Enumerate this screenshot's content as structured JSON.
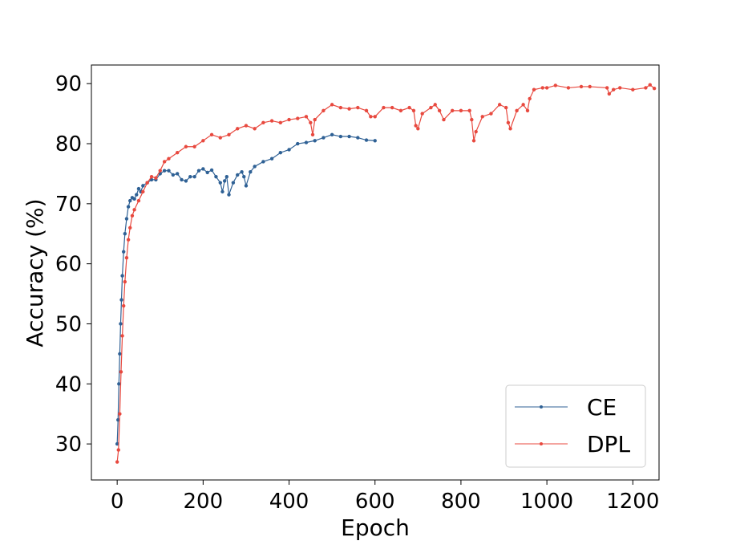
{
  "chart_data": {
    "type": "line",
    "title": "",
    "xlabel": "Epoch",
    "ylabel": "Accuracy (%)",
    "xlim": [
      -60,
      1261
    ],
    "ylim": [
      24,
      93.1
    ],
    "xticks": [
      0,
      200,
      400,
      600,
      800,
      1000,
      1200
    ],
    "yticks": [
      30,
      40,
      50,
      60,
      70,
      80,
      90
    ],
    "grid": false,
    "legend_position": "lower-right",
    "series": [
      {
        "name": "CE",
        "color": "#2f6195",
        "points": [
          [
            0,
            30
          ],
          [
            2,
            34
          ],
          [
            4,
            40
          ],
          [
            6,
            45
          ],
          [
            8,
            50
          ],
          [
            10,
            54
          ],
          [
            12,
            58
          ],
          [
            15,
            62
          ],
          [
            18,
            65
          ],
          [
            22,
            67.5
          ],
          [
            26,
            69.5
          ],
          [
            30,
            70.5
          ],
          [
            35,
            71
          ],
          [
            40,
            70.8
          ],
          [
            45,
            71.5
          ],
          [
            50,
            72.5
          ],
          [
            55,
            72
          ],
          [
            60,
            73
          ],
          [
            70,
            73.5
          ],
          [
            80,
            74
          ],
          [
            90,
            74
          ],
          [
            100,
            75
          ],
          [
            110,
            75.5
          ],
          [
            120,
            75.5
          ],
          [
            130,
            74.8
          ],
          [
            140,
            75
          ],
          [
            150,
            74
          ],
          [
            160,
            73.8
          ],
          [
            170,
            74.5
          ],
          [
            180,
            74.5
          ],
          [
            190,
            75.5
          ],
          [
            200,
            75.8
          ],
          [
            210,
            75.2
          ],
          [
            220,
            75.6
          ],
          [
            230,
            74.5
          ],
          [
            240,
            73.5
          ],
          [
            245,
            72
          ],
          [
            250,
            73.8
          ],
          [
            255,
            74.5
          ],
          [
            260,
            71.5
          ],
          [
            270,
            73.5
          ],
          [
            280,
            74.8
          ],
          [
            290,
            75.3
          ],
          [
            295,
            74.5
          ],
          [
            300,
            73
          ],
          [
            310,
            75.3
          ],
          [
            320,
            76.2
          ],
          [
            340,
            77
          ],
          [
            360,
            77.5
          ],
          [
            380,
            78.5
          ],
          [
            400,
            79
          ],
          [
            420,
            80
          ],
          [
            440,
            80.2
          ],
          [
            460,
            80.5
          ],
          [
            480,
            81
          ],
          [
            500,
            81.5
          ],
          [
            520,
            81.2
          ],
          [
            540,
            81.2
          ],
          [
            560,
            81
          ],
          [
            580,
            80.6
          ],
          [
            600,
            80.5
          ]
        ]
      },
      {
        "name": "DPL",
        "color": "#e8493f",
        "points": [
          [
            0,
            27
          ],
          [
            3,
            29
          ],
          [
            6,
            35
          ],
          [
            9,
            42
          ],
          [
            12,
            48
          ],
          [
            15,
            53
          ],
          [
            18,
            57
          ],
          [
            22,
            61
          ],
          [
            26,
            64
          ],
          [
            30,
            66
          ],
          [
            35,
            68
          ],
          [
            40,
            69
          ],
          [
            50,
            70.5
          ],
          [
            60,
            72
          ],
          [
            70,
            73.5
          ],
          [
            80,
            74.5
          ],
          [
            90,
            74.3
          ],
          [
            100,
            75.5
          ],
          [
            110,
            77
          ],
          [
            120,
            77.5
          ],
          [
            140,
            78.5
          ],
          [
            160,
            79.5
          ],
          [
            180,
            79.5
          ],
          [
            200,
            80.5
          ],
          [
            220,
            81.5
          ],
          [
            240,
            81
          ],
          [
            260,
            81.5
          ],
          [
            280,
            82.5
          ],
          [
            300,
            83
          ],
          [
            320,
            82.5
          ],
          [
            340,
            83.5
          ],
          [
            360,
            83.8
          ],
          [
            380,
            83.5
          ],
          [
            400,
            84
          ],
          [
            420,
            84.2
          ],
          [
            440,
            84.5
          ],
          [
            450,
            83.5
          ],
          [
            455,
            81.5
          ],
          [
            460,
            84
          ],
          [
            480,
            85.5
          ],
          [
            500,
            86.5
          ],
          [
            520,
            86
          ],
          [
            540,
            85.8
          ],
          [
            560,
            86
          ],
          [
            580,
            85.5
          ],
          [
            590,
            84.5
          ],
          [
            600,
            84.5
          ],
          [
            620,
            86
          ],
          [
            640,
            86
          ],
          [
            660,
            85.5
          ],
          [
            680,
            86
          ],
          [
            690,
            85.5
          ],
          [
            695,
            83
          ],
          [
            700,
            82.5
          ],
          [
            710,
            85
          ],
          [
            730,
            86
          ],
          [
            740,
            86.5
          ],
          [
            750,
            85.5
          ],
          [
            760,
            84
          ],
          [
            780,
            85.5
          ],
          [
            800,
            85.5
          ],
          [
            820,
            85.5
          ],
          [
            825,
            84
          ],
          [
            830,
            80.5
          ],
          [
            835,
            82
          ],
          [
            850,
            84.5
          ],
          [
            870,
            85
          ],
          [
            890,
            86.5
          ],
          [
            905,
            86
          ],
          [
            910,
            83.5
          ],
          [
            915,
            82.5
          ],
          [
            930,
            85.5
          ],
          [
            945,
            86.5
          ],
          [
            955,
            85.5
          ],
          [
            960,
            87.5
          ],
          [
            970,
            89
          ],
          [
            990,
            89.3
          ],
          [
            1000,
            89.3
          ],
          [
            1020,
            89.7
          ],
          [
            1050,
            89.3
          ],
          [
            1080,
            89.5
          ],
          [
            1100,
            89.5
          ],
          [
            1140,
            89.3
          ],
          [
            1145,
            88.3
          ],
          [
            1155,
            89
          ],
          [
            1170,
            89.3
          ],
          [
            1200,
            89
          ],
          [
            1230,
            89.3
          ],
          [
            1240,
            89.8
          ],
          [
            1250,
            89.2
          ]
        ]
      }
    ]
  }
}
